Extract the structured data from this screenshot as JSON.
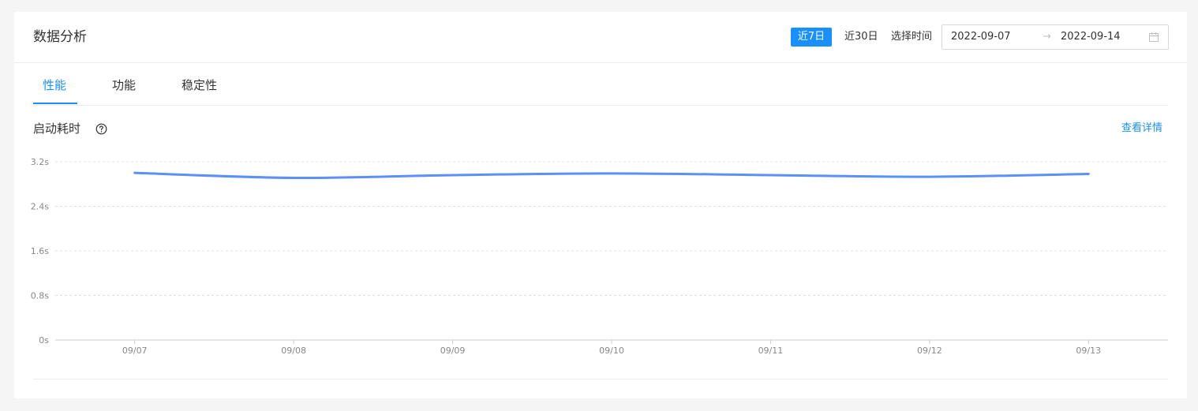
{
  "header": {
    "title": "数据分析",
    "range_7": "近7日",
    "range_30": "近30日",
    "range_label": "选择时间",
    "date_start": "2022-09-07",
    "date_arrow": "→",
    "date_end": "2022-09-14"
  },
  "tabs": [
    {
      "label": "性能"
    },
    {
      "label": "功能"
    },
    {
      "label": "稳定性"
    }
  ],
  "section": {
    "title": "启动耗时",
    "detail_link": "查看详情"
  },
  "colors": {
    "accent": "#1890ff",
    "line": "#5b8ff9"
  },
  "chart_data": {
    "type": "line",
    "categories": [
      "09/07",
      "09/08",
      "09/09",
      "09/10",
      "09/11",
      "09/12",
      "09/13"
    ],
    "values": [
      3.0,
      2.91,
      2.96,
      2.99,
      2.96,
      2.93,
      2.98
    ],
    "ylim": [
      0,
      3.2
    ],
    "yticks": [
      0,
      0.8,
      1.6,
      2.4,
      3.2
    ],
    "ytick_labels": [
      "0s",
      "0.8s",
      "1.6s",
      "2.4s",
      "3.2s"
    ],
    "grid": true,
    "smooth": true
  }
}
